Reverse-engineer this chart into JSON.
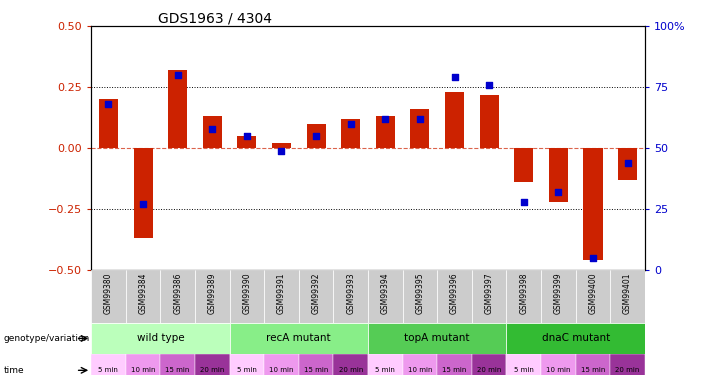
{
  "title": "GDS1963 / 4304",
  "samples": [
    "GSM99380",
    "GSM99384",
    "GSM99386",
    "GSM99389",
    "GSM99390",
    "GSM99391",
    "GSM99392",
    "GSM99393",
    "GSM99394",
    "GSM99395",
    "GSM99396",
    "GSM99397",
    "GSM99398",
    "GSM99399",
    "GSM99400",
    "GSM99401"
  ],
  "log_ratio": [
    0.2,
    -0.37,
    0.32,
    0.13,
    0.05,
    0.02,
    0.1,
    0.12,
    0.13,
    0.16,
    0.23,
    0.22,
    -0.14,
    -0.22,
    -0.46,
    -0.13
  ],
  "percentile": [
    68,
    27,
    80,
    58,
    55,
    49,
    55,
    60,
    62,
    62,
    79,
    76,
    28,
    32,
    5,
    44
  ],
  "genotype_groups": [
    {
      "label": "wild type",
      "start": 0,
      "end": 4,
      "color": "#bbffbb"
    },
    {
      "label": "recA mutant",
      "start": 4,
      "end": 8,
      "color": "#88ee88"
    },
    {
      "label": "topA mutant",
      "start": 8,
      "end": 12,
      "color": "#55cc55"
    },
    {
      "label": "dnaC mutant",
      "start": 12,
      "end": 16,
      "color": "#33bb33"
    }
  ],
  "time_shades": [
    "#ffccff",
    "#ee99ee",
    "#cc66cc",
    "#993399"
  ],
  "time_labels": [
    "5 min",
    "10 min",
    "15 min",
    "20 min",
    "5 min",
    "10 min",
    "15 min",
    "20 min",
    "5 min",
    "10 min",
    "15 min",
    "20 min",
    "5 min",
    "10 min",
    "15 min",
    "20 min"
  ],
  "bar_color": "#cc2200",
  "dot_color": "#0000cc",
  "ylim_left": [
    -0.5,
    0.5
  ],
  "ylim_right": [
    0,
    100
  ],
  "yticks_left": [
    -0.5,
    -0.25,
    0,
    0.25,
    0.5
  ],
  "yticks_right": [
    0,
    25,
    50,
    75,
    100
  ],
  "hlines": [
    0.25,
    -0.25
  ],
  "bar_width": 0.55,
  "sample_bg": "#cccccc"
}
